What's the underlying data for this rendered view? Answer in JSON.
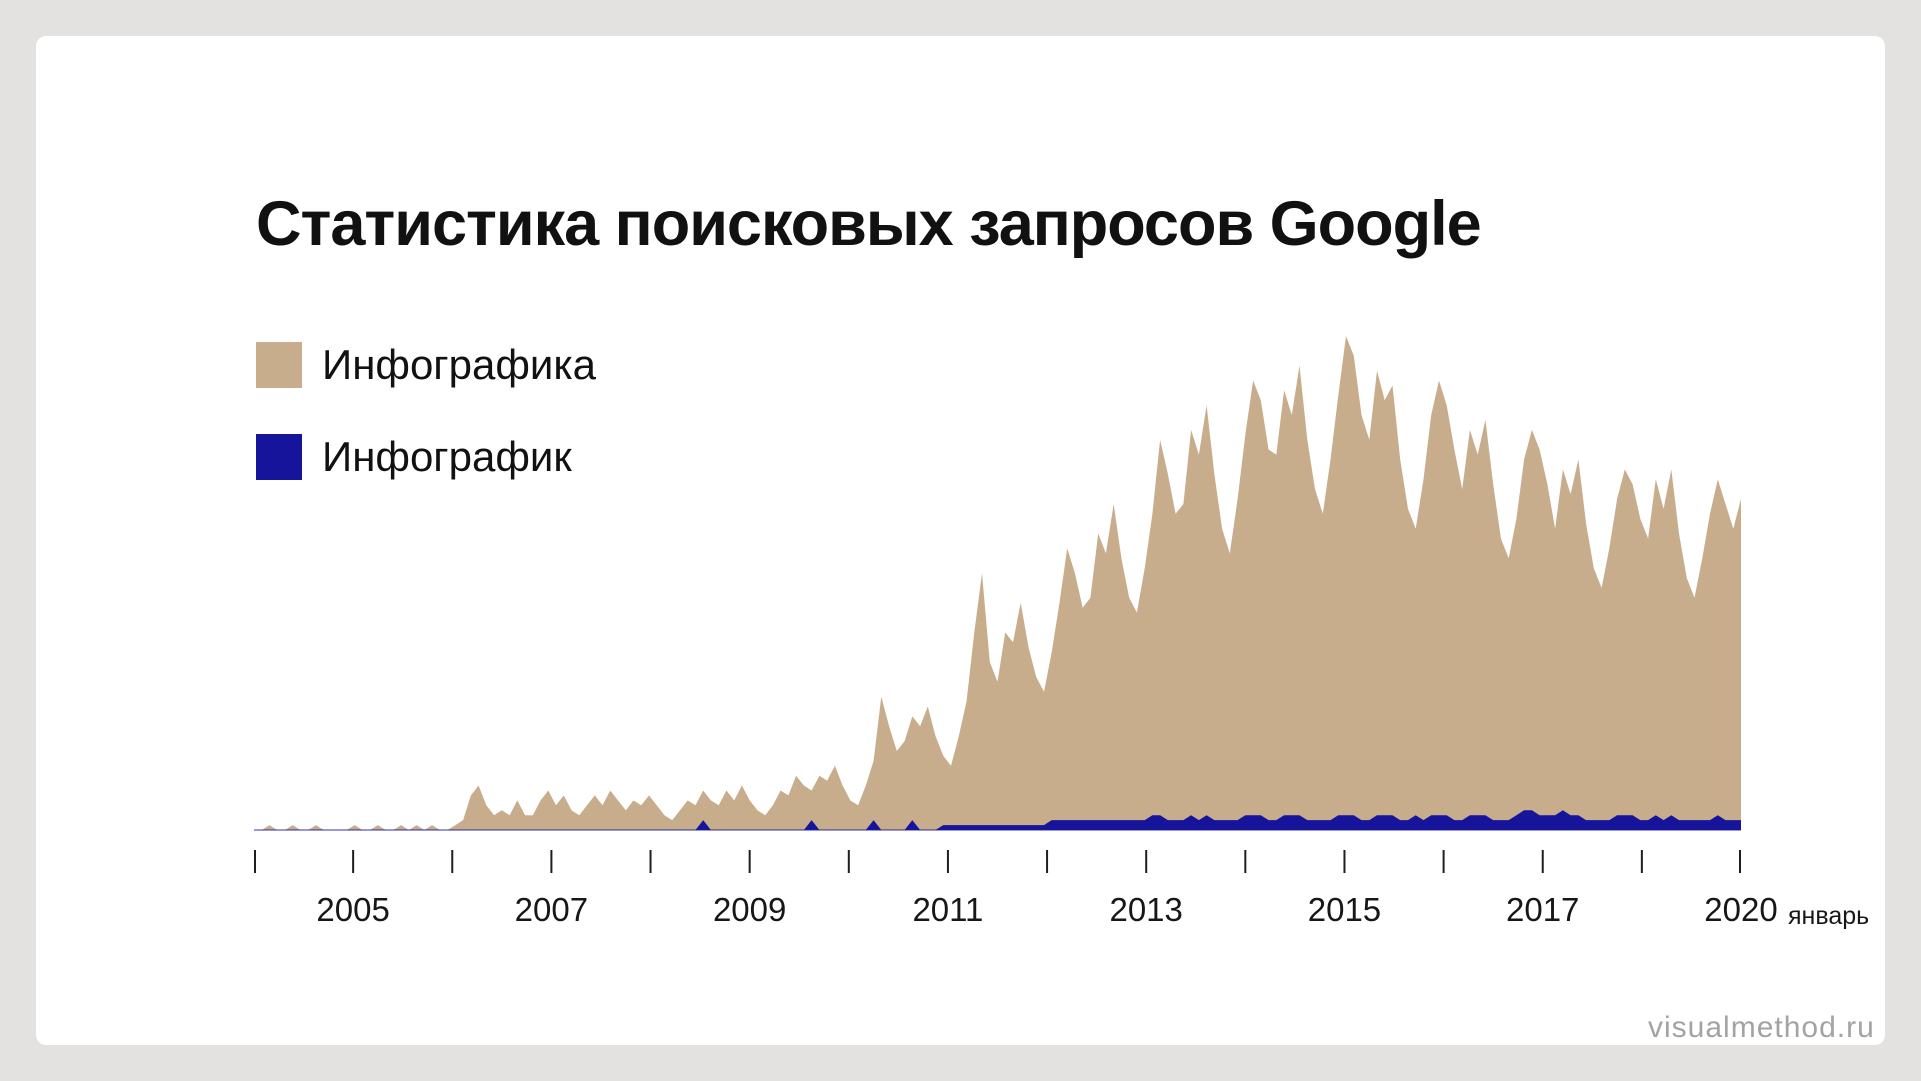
{
  "page": {
    "title": "Статистика поисковых запросов Google",
    "watermark": "visualmethod.ru"
  },
  "chart_data": {
    "type": "area",
    "title": "Статистика поисковых запросов Google",
    "xlabel": "",
    "ylabel": "",
    "x_start": 2004.0,
    "x_end": 2020.0,
    "x_unit": "month",
    "ylim": [
      0,
      100
    ],
    "grid": false,
    "legend_position": "top-left",
    "tick_count": 16,
    "x_tick_labels": [
      "2005",
      "2007",
      "2009",
      "2011",
      "2013",
      "2015",
      "2017",
      "2020"
    ],
    "x_suffix": "январь",
    "axis_color": "#1E1E1E",
    "baseline_color": "#1B1B9E",
    "series": [
      {
        "name": "Инфографика",
        "color": "#C8AD8C",
        "values": [
          0,
          0,
          1,
          0,
          0,
          1,
          0,
          0,
          1,
          0,
          0,
          0,
          0,
          1,
          0,
          0,
          1,
          0,
          0,
          1,
          0,
          1,
          0,
          1,
          0,
          0,
          1,
          2,
          7,
          9,
          5,
          3,
          4,
          3,
          6,
          3,
          3,
          6,
          8,
          5,
          7,
          4,
          3,
          5,
          7,
          5,
          8,
          6,
          4,
          6,
          5,
          7,
          5,
          3,
          2,
          4,
          6,
          5,
          8,
          6,
          5,
          8,
          6,
          9,
          6,
          4,
          3,
          5,
          8,
          7,
          11,
          9,
          8,
          11,
          10,
          13,
          9,
          6,
          5,
          9,
          14,
          27,
          21,
          16,
          18,
          23,
          21,
          25,
          19,
          15,
          13,
          19,
          26,
          40,
          52,
          34,
          30,
          40,
          38,
          46,
          37,
          31,
          28,
          36,
          46,
          57,
          52,
          45,
          47,
          60,
          56,
          66,
          55,
          47,
          44,
          53,
          64,
          79,
          72,
          64,
          66,
          81,
          76,
          86,
          72,
          61,
          56,
          67,
          80,
          91,
          87,
          77,
          76,
          89,
          84,
          94,
          79,
          69,
          64,
          75,
          88,
          100,
          96,
          84,
          79,
          93,
          87,
          90,
          75,
          65,
          61,
          71,
          84,
          91,
          86,
          77,
          69,
          81,
          76,
          83,
          70,
          59,
          55,
          63,
          75,
          81,
          77,
          70,
          61,
          73,
          68,
          75,
          62,
          53,
          49,
          57,
          67,
          73,
          70,
          63,
          59,
          71,
          65,
          73,
          60,
          51,
          47,
          55,
          64,
          71,
          66,
          61,
          67
        ]
      },
      {
        "name": "Инфографик",
        "color": "#15149B",
        "values": [
          0,
          0,
          0,
          0,
          0,
          0,
          0,
          0,
          0,
          0,
          0,
          0,
          0,
          0,
          0,
          0,
          0,
          0,
          0,
          0,
          0,
          0,
          0,
          0,
          0,
          0,
          0,
          0,
          0,
          0,
          0,
          0,
          0,
          0,
          0,
          0,
          0,
          0,
          0,
          0,
          0,
          0,
          0,
          0,
          0,
          0,
          0,
          0,
          0,
          0,
          0,
          0,
          0,
          0,
          0,
          0,
          0,
          0,
          2,
          0,
          0,
          0,
          0,
          0,
          0,
          0,
          0,
          0,
          0,
          0,
          0,
          0,
          2,
          0,
          0,
          0,
          0,
          0,
          0,
          0,
          2,
          0,
          0,
          0,
          0,
          2,
          0,
          0,
          0,
          1,
          1,
          1,
          1,
          1,
          1,
          1,
          1,
          1,
          1,
          1,
          1,
          1,
          1,
          2,
          2,
          2,
          2,
          2,
          2,
          2,
          2,
          2,
          2,
          2,
          2,
          2,
          3,
          3,
          2,
          2,
          2,
          3,
          2,
          3,
          2,
          2,
          2,
          2,
          3,
          3,
          3,
          2,
          2,
          3,
          3,
          3,
          2,
          2,
          2,
          2,
          3,
          3,
          3,
          2,
          2,
          3,
          3,
          3,
          2,
          2,
          3,
          2,
          3,
          3,
          3,
          2,
          2,
          3,
          3,
          3,
          2,
          2,
          2,
          3,
          4,
          4,
          3,
          3,
          3,
          4,
          3,
          3,
          2,
          2,
          2,
          2,
          3,
          3,
          3,
          2,
          2,
          3,
          2,
          3,
          2,
          2,
          2,
          2,
          2,
          3,
          2,
          2,
          2
        ]
      }
    ]
  }
}
